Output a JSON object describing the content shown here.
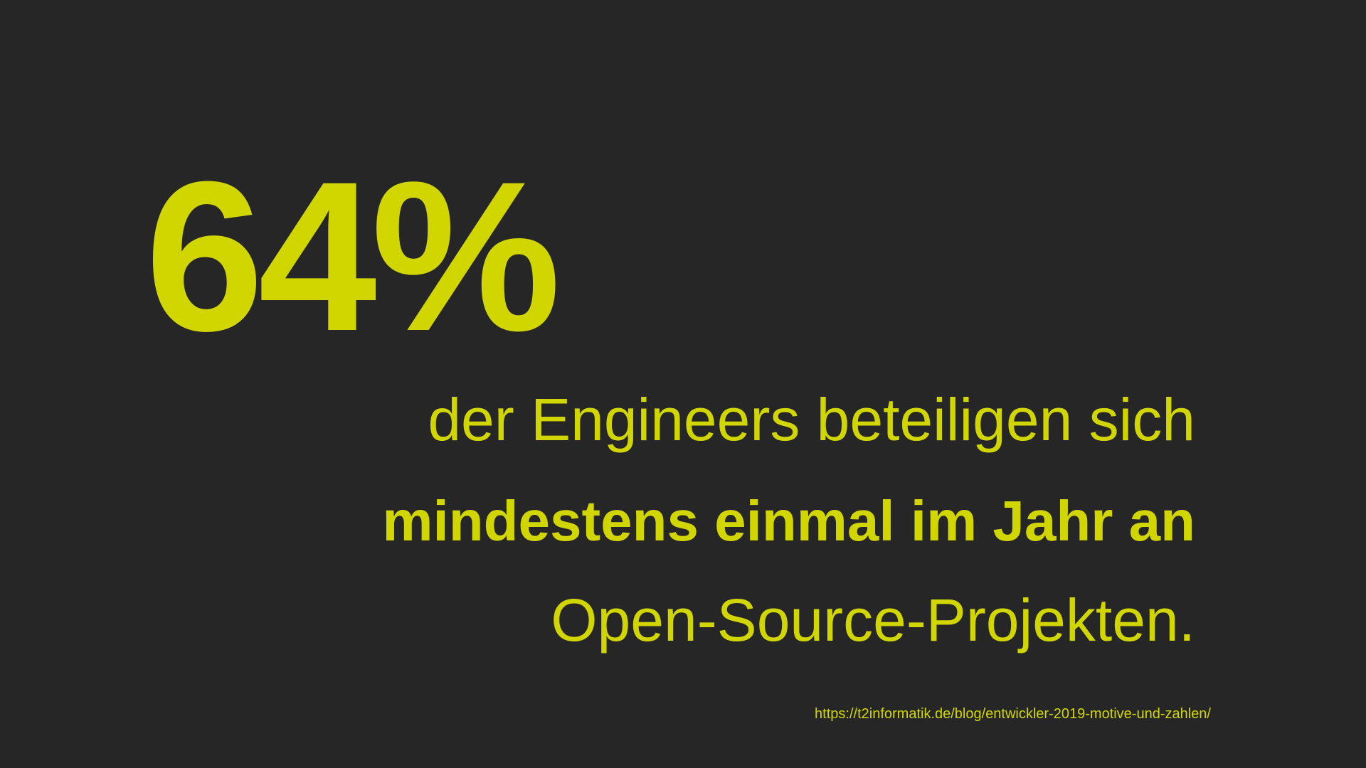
{
  "headline": "64%",
  "lines": [
    "der Engineers beteiligen sich",
    "mindestens einmal im Jahr an",
    "Open-Source-Projekten."
  ],
  "source": "https://t2informatik.de/blog/entwickler-2019-motive-und-zahlen/"
}
